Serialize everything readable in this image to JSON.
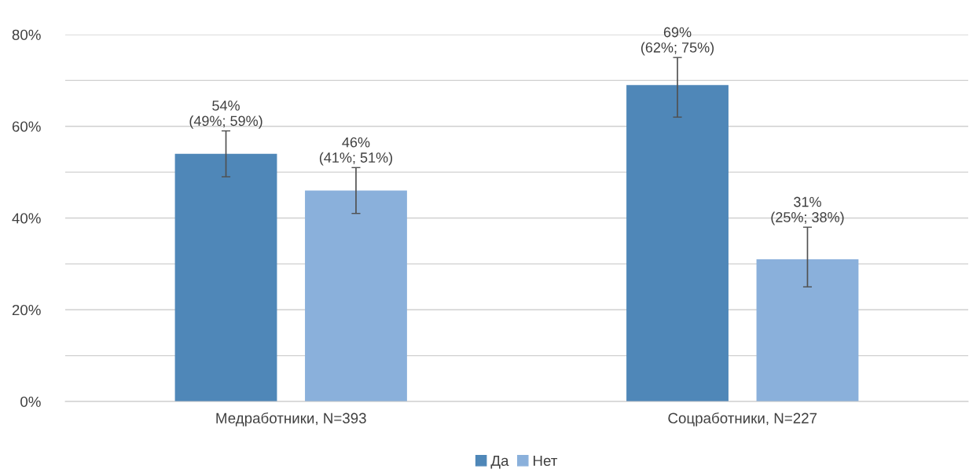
{
  "chart_data": {
    "type": "bar",
    "categories": [
      "Медработники, N=393",
      "Соцработники, N=227"
    ],
    "series": [
      {
        "name": "Да",
        "color": "#4f87b8",
        "values": [
          54,
          69
        ],
        "errors": [
          [
            49,
            59
          ],
          [
            62,
            75
          ]
        ],
        "value_labels": [
          "54%\n(49%; 59%)",
          "69%\n(62%; 75%)"
        ]
      },
      {
        "name": "Нет",
        "color": "#8ab0db",
        "values": [
          46,
          31
        ],
        "errors": [
          [
            41,
            51
          ],
          [
            25,
            38
          ]
        ],
        "value_labels": [
          "46%\n(41%; 51%)",
          "31%\n(25%; 38%)"
        ]
      }
    ],
    "ylim": [
      0,
      80
    ],
    "yticks": [
      {
        "value": 0,
        "label": "0%"
      },
      {
        "value": 10,
        "label": null
      },
      {
        "value": 20,
        "label": "20%"
      },
      {
        "value": 30,
        "label": null
      },
      {
        "value": 40,
        "label": "40%"
      },
      {
        "value": 50,
        "label": null
      },
      {
        "value": 60,
        "label": "60%"
      },
      {
        "value": 70,
        "label": null
      },
      {
        "value": 80,
        "label": "80%"
      }
    ],
    "grid": "y",
    "legend": "bottom"
  }
}
